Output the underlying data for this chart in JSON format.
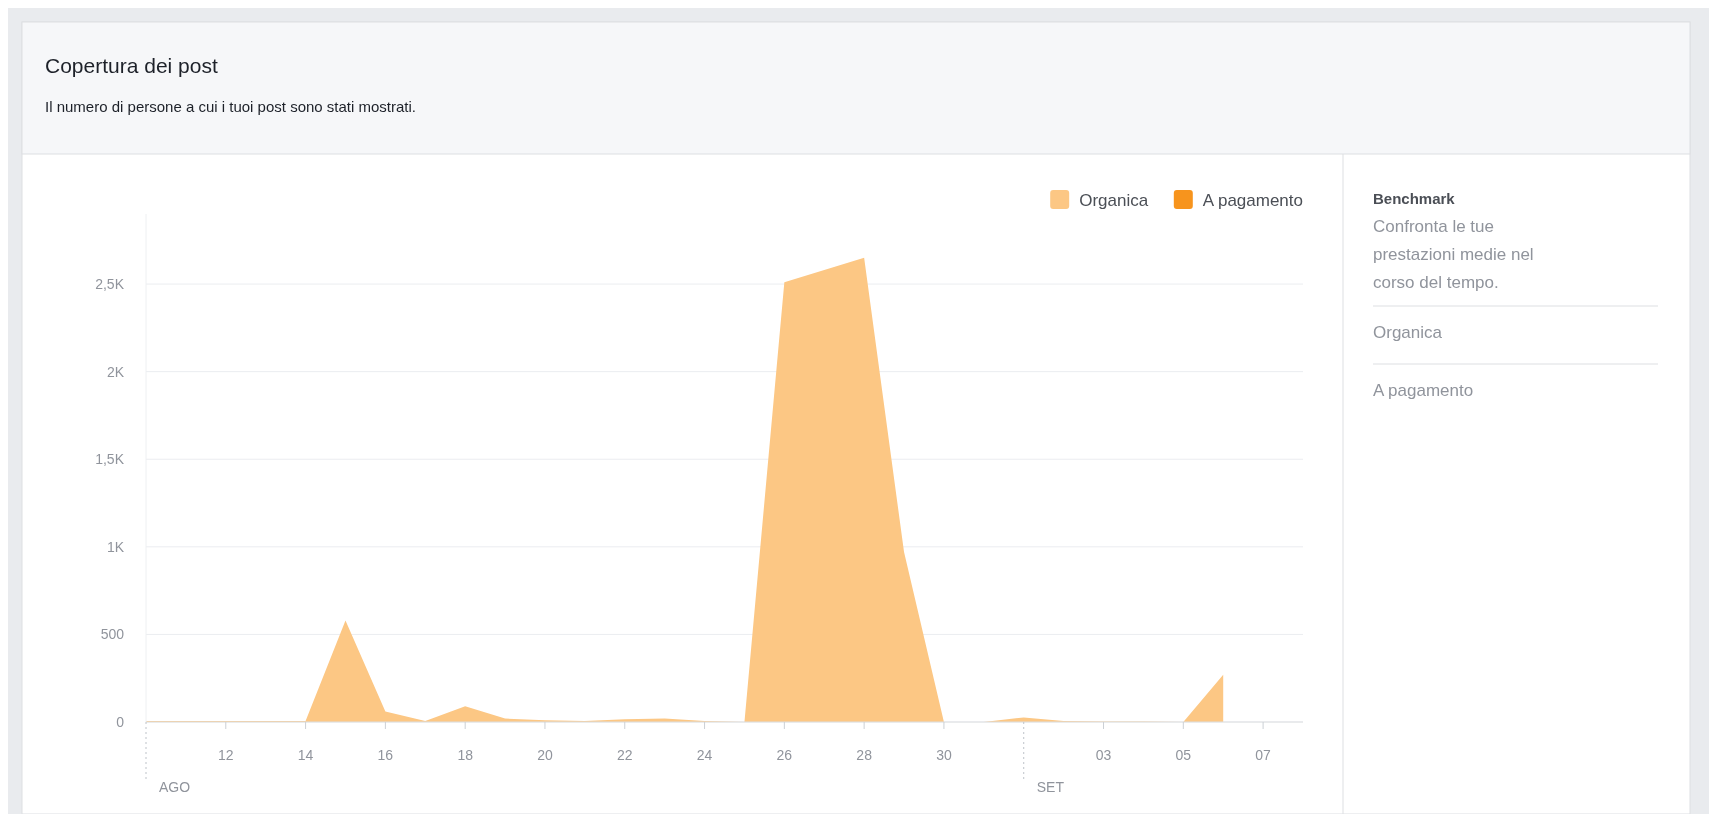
{
  "chart_data": [
    {
      "type": "area",
      "title": "Copertura dei post",
      "subtitle": "Il numero di persone a cui i tuoi post sono stati mostrati.",
      "x": [
        "--08-10",
        "--08-11",
        "--08-12",
        "--08-13",
        "--08-14",
        "--08-15",
        "--08-16",
        "--08-17",
        "--08-18",
        "--08-19",
        "--08-20",
        "--08-21",
        "--08-22",
        "--08-23",
        "--08-24",
        "--08-25",
        "--08-26",
        "--08-27",
        "--08-28",
        "--08-29",
        "--08-30",
        "--08-31",
        "--09-01",
        "--09-02",
        "--09-03",
        "--09-04",
        "--09-05",
        "--09-06"
      ],
      "series": [
        {
          "name": "Organica",
          "color": "#fcc784",
          "values": [
            5,
            5,
            5,
            5,
            5,
            580,
            60,
            5,
            90,
            20,
            10,
            5,
            15,
            20,
            5,
            0,
            2510,
            2580,
            2650,
            970,
            0,
            0,
            26,
            5,
            3,
            3,
            0,
            270
          ]
        },
        {
          "name": "A pagamento",
          "color": "#f7941d",
          "values": [
            null,
            null,
            null,
            null,
            null,
            null,
            null,
            null,
            null,
            null,
            null,
            null,
            null,
            null,
            null,
            null,
            null,
            null,
            null,
            null,
            null,
            null,
            null,
            null,
            null,
            null,
            null,
            null
          ]
        }
      ],
      "xlim": [
        "--08-10",
        "--09-08"
      ],
      "xticks": [
        {
          "value": "--08-12",
          "label": "12"
        },
        {
          "value": "--08-14",
          "label": "14"
        },
        {
          "value": "--08-16",
          "label": "16"
        },
        {
          "value": "--08-18",
          "label": "18"
        },
        {
          "value": "--08-20",
          "label": "20"
        },
        {
          "value": "--08-22",
          "label": "22"
        },
        {
          "value": "--08-24",
          "label": "24"
        },
        {
          "value": "--08-26",
          "label": "26"
        },
        {
          "value": "--08-28",
          "label": "28"
        },
        {
          "value": "--08-30",
          "label": "30"
        },
        {
          "value": "--09-03",
          "label": "03"
        },
        {
          "value": "--09-05",
          "label": "05"
        },
        {
          "value": "--09-07",
          "label": "07"
        }
      ],
      "ylim": [
        0,
        2900
      ],
      "yticks": [
        0,
        500,
        {
          "value": 1000,
          "label": "1K"
        },
        {
          "value": 1500,
          "label": "1,5K"
        },
        {
          "value": 2000,
          "label": "2K"
        },
        {
          "value": 2500,
          "label": "2,5K"
        }
      ],
      "annotations": [
        "AGO",
        "SET"
      ],
      "grid": "y",
      "legend": "top right"
    },
    {
      "type": "other",
      "title": "Benchmark",
      "subtitle": "Confronta le tue prestazioni medie nel corso del tempo.",
      "annotations": [
        "Organica",
        "A pagamento"
      ]
    }
  ]
}
